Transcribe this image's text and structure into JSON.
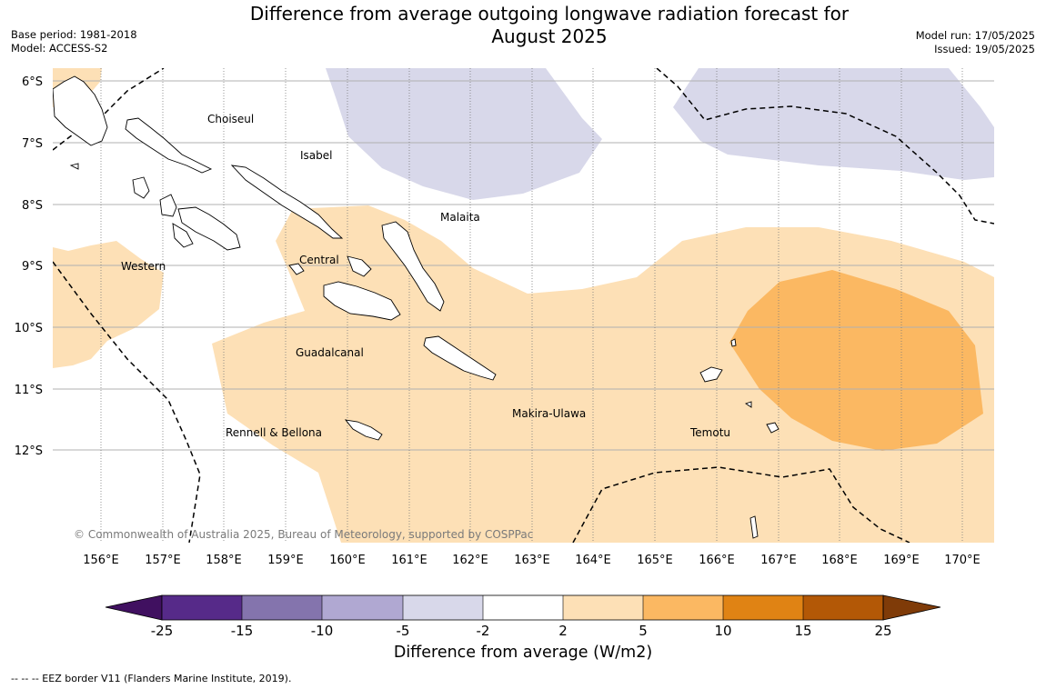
{
  "header": {
    "title_line1": "Difference from average outgoing longwave radiation forecast for",
    "title_line2": "August 2025",
    "base_period": "Base period: 1981-2018",
    "model": "Model: ACCESS-S2",
    "model_run": "Model run: 17/05/2025",
    "issued": "Issued: 19/05/2025"
  },
  "map": {
    "lat_labels": [
      "6°S",
      "7°S",
      "8°S",
      "9°S",
      "10°S",
      "11°S",
      "12°S"
    ],
    "lon_labels": [
      "156°E",
      "157°E",
      "158°E",
      "159°E",
      "160°E",
      "161°E",
      "162°E",
      "163°E",
      "164°E",
      "165°E",
      "166°E",
      "167°E",
      "168°E",
      "169°E",
      "170°E"
    ],
    "regions": {
      "choiseul": "Choiseul",
      "isabel": "Isabel",
      "malaita": "Malaita",
      "western": "Western",
      "central": "Central",
      "guadalcanal": "Guadalcanal",
      "makira": "Makira-Ulawa",
      "rennell": "Rennell & Bellona",
      "temotu": "Temotu"
    },
    "copyright": "© Commonwealth of Australia 2025, Bureau of Meteorology, supported by COSPPac",
    "colors": {
      "n2_5": "#d8d8ea",
      "p2_5": "#fde0b6",
      "p5_10": "#fbb862"
    }
  },
  "colorbar": {
    "ticks": [
      "-25",
      "-15",
      "-10",
      "-5",
      "-2",
      "2",
      "5",
      "10",
      "15",
      "25"
    ],
    "colors": [
      "#401060",
      "#562a89",
      "#8474ad",
      "#b0a8d2",
      "#d8d8ea",
      "#ffffff",
      "#fde0b6",
      "#fbb862",
      "#e08314",
      "#b35806",
      "#7f3b08"
    ],
    "label": "Difference from average (W/m2)"
  },
  "footer": {
    "eez": "--  --  -- EEZ border V11 (Flanders Marine Institute, 2019)."
  }
}
